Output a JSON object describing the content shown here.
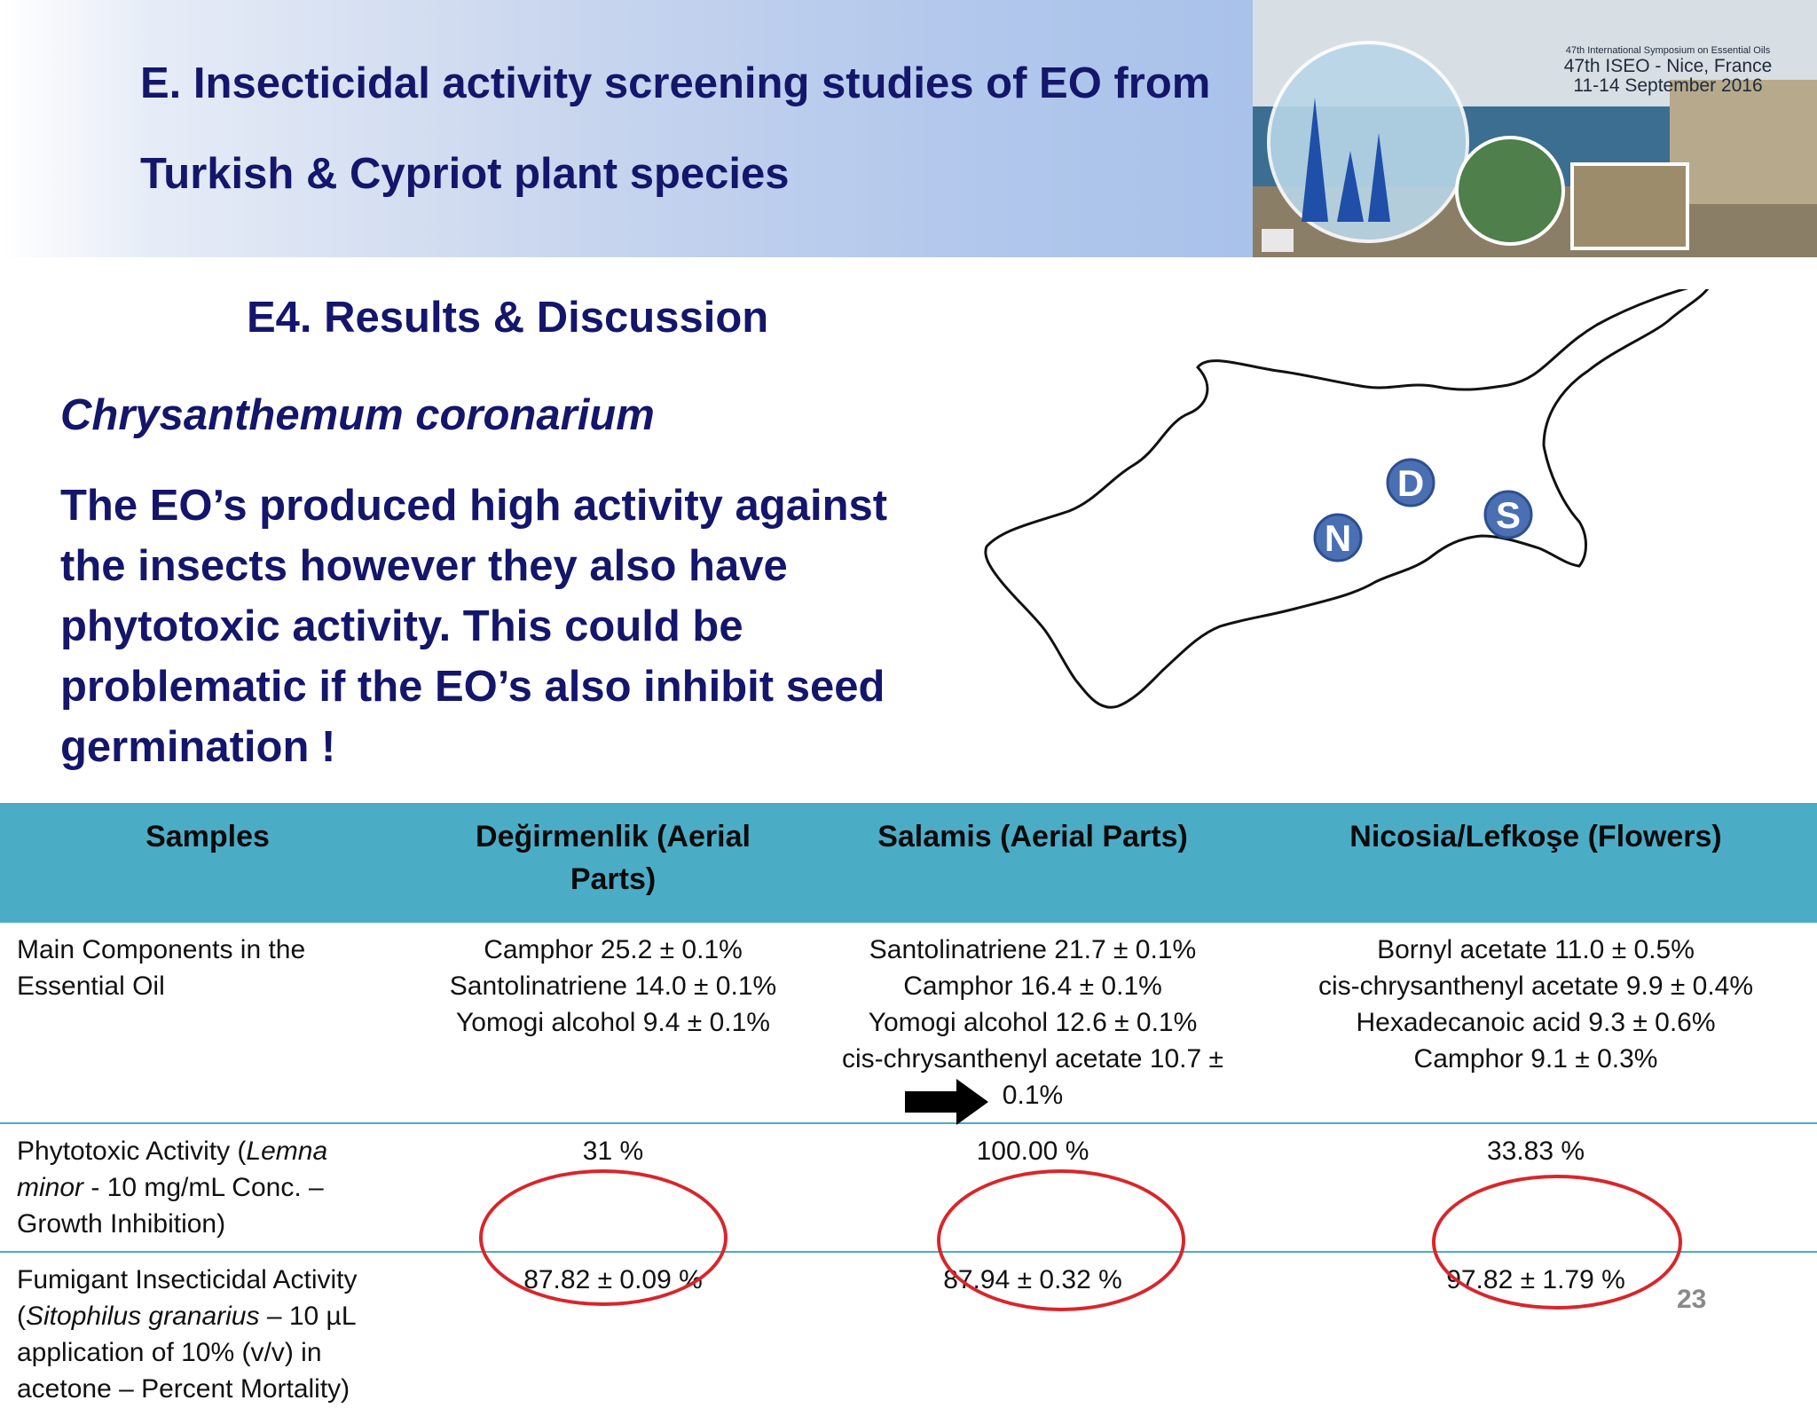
{
  "header": {
    "title_line1": "E. Insecticidal activity screening studies of EO from",
    "title_line2": "Turkish & Cypriot plant species",
    "conference": {
      "line1": "47th International Symposium on Essential Oils",
      "line2": "47th ISEO - Nice, France",
      "line3": "11-14 September 2016"
    }
  },
  "section": {
    "subtitle": "E4. Results & Discussion",
    "species": "Chrysanthemum coronarium",
    "paragraph": "The EO’s produced high activity against the insects however they also have phytotoxic activity. This could be problematic if the EO’s also inhibit seed germination !"
  },
  "map": {
    "markers": [
      {
        "letter": "D",
        "name": "Değirmenlik"
      },
      {
        "letter": "S",
        "name": "Salamis"
      },
      {
        "letter": "N",
        "name": "Nicosia"
      }
    ],
    "marker_color": "#4a6fb3"
  },
  "table": {
    "headers": [
      "Samples",
      "Değirmenlik (Aerial Parts)",
      "Salamis (Aerial Parts)",
      "Nicosia/Lefkoşe (Flowers)"
    ],
    "rows": {
      "components": {
        "label": "Main Components in the Essential Oil",
        "cols": [
          [
            "Camphor 25.2 ± 0.1%",
            "Santolinatriene 14.0 ± 0.1%",
            "Yomogi alcohol 9.4 ± 0.1%"
          ],
          [
            "Santolinatriene 21.7 ± 0.1%",
            "Camphor 16.4 ± 0.1%",
            "Yomogi alcohol 12.6 ± 0.1%",
            "cis-chrysanthenyl acetate 10.7 ± 0.1%"
          ],
          [
            "Bornyl acetate 11.0 ± 0.5%",
            "cis-chrysanthenyl acetate 9.9 ± 0.4%",
            "Hexadecanoic acid 9.3 ± 0.6%",
            "Camphor 9.1 ± 0.3%"
          ]
        ]
      },
      "phytotoxic": {
        "label_pre": "Phytotoxic Activity (",
        "label_italic": "Lemna minor",
        "label_post": " - 10 mg/mL Conc. – Growth Inhibition)",
        "cols": [
          "31 %",
          "100.00 %",
          "33.83 %"
        ]
      },
      "fumigant": {
        "label_pre": "Fumigant Insecticidal Activity (",
        "label_italic": "Sitophilus granarius",
        "label_post": " – 10 µL application of 10% (v/v) in acetone – Percent Mortality)",
        "cols": [
          "87.82 ± 0.09 %",
          "87.94 ± 0.32 %",
          "97.82 ± 1.79 %"
        ]
      }
    }
  },
  "highlight_color": "#d8262b",
  "page_number": "23"
}
